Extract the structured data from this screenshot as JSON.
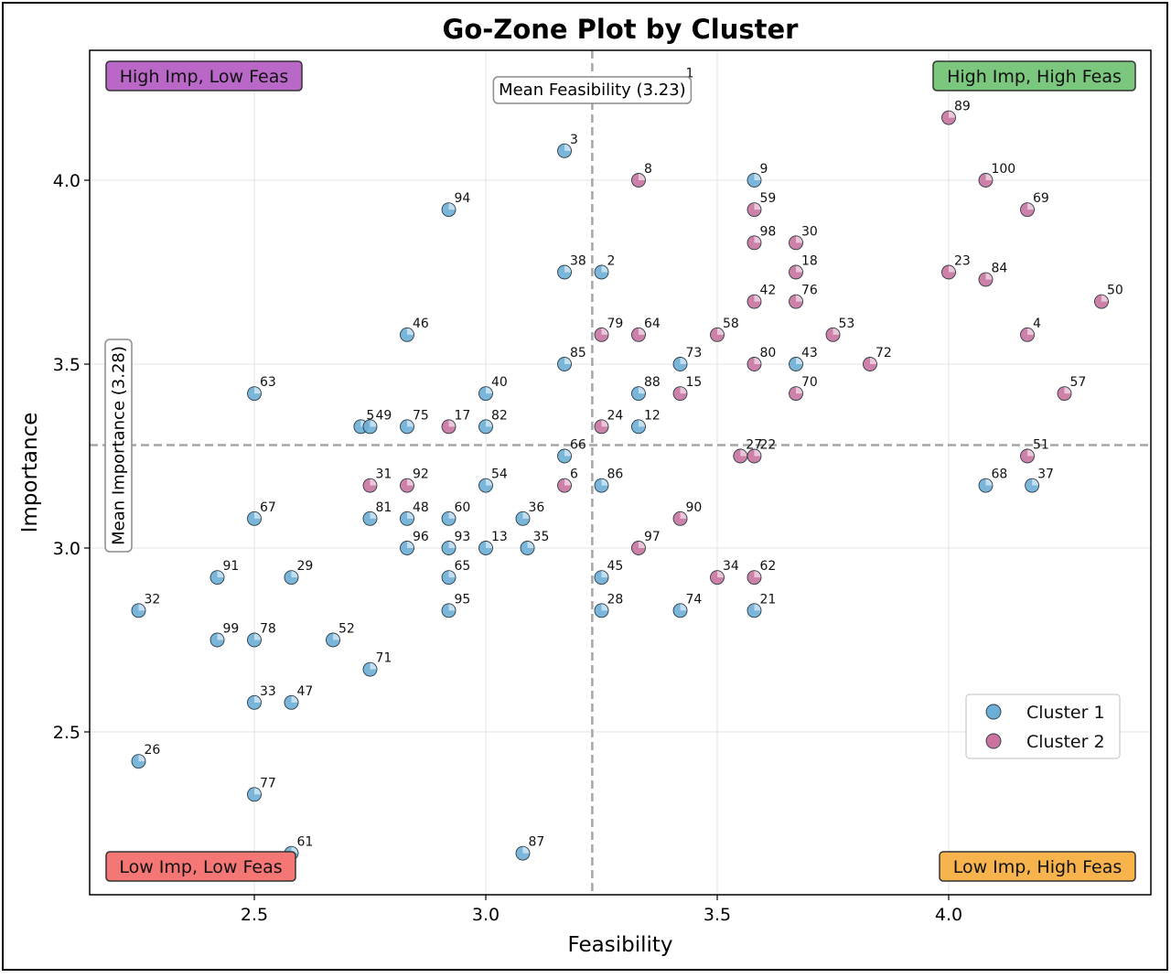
{
  "chart_data": {
    "type": "scatter",
    "title": "Go-Zone Plot by Cluster",
    "xlabel": "Feasibility",
    "ylabel": "Importance",
    "xlim": [
      2.14,
      4.44
    ],
    "ylim": [
      2.08,
      4.32
    ],
    "xticks": [
      2.5,
      3.0,
      3.5,
      4.0
    ],
    "yticks": [
      2.5,
      3.0,
      3.5,
      4.0
    ],
    "grid": true,
    "legend_position": "lower-right",
    "mean_feasibility": 3.23,
    "mean_importance": 3.28,
    "mean_feasibility_label": "Mean Feasibility (3.23)",
    "mean_importance_label": "Mean Importance (3.28)",
    "quadrants": [
      {
        "label": "High Imp, Low Feas",
        "position": "top-left",
        "color": "#b968c7"
      },
      {
        "label": "High Imp, High Feas",
        "position": "top-right",
        "color": "#7bc77e"
      },
      {
        "label": "Low Imp, Low Feas",
        "position": "bottom-left",
        "color": "#f47775"
      },
      {
        "label": "Low Imp, High Feas",
        "position": "bottom-right",
        "color": "#f8b44c"
      }
    ],
    "series": [
      {
        "name": "Cluster 1",
        "color": "#6baed6",
        "points": [
          {
            "id": "3",
            "x": 3.17,
            "y": 4.08
          },
          {
            "id": "9",
            "x": 3.58,
            "y": 4.0
          },
          {
            "id": "94",
            "x": 2.92,
            "y": 3.92
          },
          {
            "id": "38",
            "x": 3.17,
            "y": 3.75
          },
          {
            "id": "2",
            "x": 3.25,
            "y": 3.75
          },
          {
            "id": "46",
            "x": 2.83,
            "y": 3.58
          },
          {
            "id": "85",
            "x": 3.17,
            "y": 3.5
          },
          {
            "id": "73",
            "x": 3.42,
            "y": 3.5
          },
          {
            "id": "43",
            "x": 3.67,
            "y": 3.5
          },
          {
            "id": "63",
            "x": 2.5,
            "y": 3.42
          },
          {
            "id": "40",
            "x": 3.0,
            "y": 3.42
          },
          {
            "id": "88",
            "x": 3.33,
            "y": 3.42
          },
          {
            "id": "5",
            "x": 2.73,
            "y": 3.33
          },
          {
            "id": "49",
            "x": 2.75,
            "y": 3.33
          },
          {
            "id": "75",
            "x": 2.83,
            "y": 3.33
          },
          {
            "id": "82",
            "x": 3.0,
            "y": 3.33
          },
          {
            "id": "12",
            "x": 3.33,
            "y": 3.33
          },
          {
            "id": "66",
            "x": 3.17,
            "y": 3.25
          },
          {
            "id": "86",
            "x": 3.25,
            "y": 3.17
          },
          {
            "id": "54",
            "x": 3.0,
            "y": 3.17
          },
          {
            "id": "68",
            "x": 4.08,
            "y": 3.17
          },
          {
            "id": "37",
            "x": 4.18,
            "y": 3.17
          },
          {
            "id": "67",
            "x": 2.5,
            "y": 3.08
          },
          {
            "id": "81",
            "x": 2.75,
            "y": 3.08
          },
          {
            "id": "48",
            "x": 2.83,
            "y": 3.08
          },
          {
            "id": "60",
            "x": 2.92,
            "y": 3.08
          },
          {
            "id": "36",
            "x": 3.08,
            "y": 3.08
          },
          {
            "id": "96",
            "x": 2.83,
            "y": 3.0
          },
          {
            "id": "93",
            "x": 2.92,
            "y": 3.0
          },
          {
            "id": "13",
            "x": 3.0,
            "y": 3.0
          },
          {
            "id": "35",
            "x": 3.09,
            "y": 3.0
          },
          {
            "id": "91",
            "x": 2.42,
            "y": 2.92
          },
          {
            "id": "29",
            "x": 2.58,
            "y": 2.92
          },
          {
            "id": "65",
            "x": 2.92,
            "y": 2.92
          },
          {
            "id": "45",
            "x": 3.25,
            "y": 2.92
          },
          {
            "id": "32",
            "x": 2.25,
            "y": 2.83
          },
          {
            "id": "95",
            "x": 2.92,
            "y": 2.83
          },
          {
            "id": "28",
            "x": 3.25,
            "y": 2.83
          },
          {
            "id": "74",
            "x": 3.42,
            "y": 2.83
          },
          {
            "id": "21",
            "x": 3.58,
            "y": 2.83
          },
          {
            "id": "99",
            "x": 2.42,
            "y": 2.75
          },
          {
            "id": "78",
            "x": 2.5,
            "y": 2.75
          },
          {
            "id": "52",
            "x": 2.67,
            "y": 2.75
          },
          {
            "id": "71",
            "x": 2.75,
            "y": 2.67
          },
          {
            "id": "33",
            "x": 2.5,
            "y": 2.58
          },
          {
            "id": "47",
            "x": 2.58,
            "y": 2.58
          },
          {
            "id": "26",
            "x": 2.25,
            "y": 2.42
          },
          {
            "id": "77",
            "x": 2.5,
            "y": 2.33
          },
          {
            "id": "61",
            "x": 2.58,
            "y": 2.17
          },
          {
            "id": "87",
            "x": 3.08,
            "y": 2.17
          }
        ]
      },
      {
        "name": "Cluster 2",
        "color": "#c9739e",
        "points": [
          {
            "id": "89",
            "x": 4.0,
            "y": 4.17
          },
          {
            "id": "8",
            "x": 3.33,
            "y": 4.0
          },
          {
            "id": "100",
            "x": 4.08,
            "y": 4.0
          },
          {
            "id": "59",
            "x": 3.58,
            "y": 3.92
          },
          {
            "id": "69",
            "x": 4.17,
            "y": 3.92
          },
          {
            "id": "98",
            "x": 3.58,
            "y": 3.83
          },
          {
            "id": "30",
            "x": 3.67,
            "y": 3.83
          },
          {
            "id": "18",
            "x": 3.67,
            "y": 3.75
          },
          {
            "id": "23",
            "x": 4.0,
            "y": 3.75
          },
          {
            "id": "84",
            "x": 4.08,
            "y": 3.73
          },
          {
            "id": "42",
            "x": 3.58,
            "y": 3.67
          },
          {
            "id": "76",
            "x": 3.67,
            "y": 3.67
          },
          {
            "id": "50",
            "x": 4.33,
            "y": 3.67
          },
          {
            "id": "79",
            "x": 3.25,
            "y": 3.58
          },
          {
            "id": "64",
            "x": 3.33,
            "y": 3.58
          },
          {
            "id": "58",
            "x": 3.5,
            "y": 3.58
          },
          {
            "id": "53",
            "x": 3.75,
            "y": 3.58
          },
          {
            "id": "4",
            "x": 4.17,
            "y": 3.58
          },
          {
            "id": "80",
            "x": 3.58,
            "y": 3.5
          },
          {
            "id": "72",
            "x": 3.83,
            "y": 3.5
          },
          {
            "id": "15",
            "x": 3.42,
            "y": 3.42
          },
          {
            "id": "70",
            "x": 3.67,
            "y": 3.42
          },
          {
            "id": "57",
            "x": 4.25,
            "y": 3.42
          },
          {
            "id": "17",
            "x": 2.92,
            "y": 3.33
          },
          {
            "id": "24",
            "x": 3.25,
            "y": 3.33
          },
          {
            "id": "27",
            "x": 3.55,
            "y": 3.25
          },
          {
            "id": "22",
            "x": 3.58,
            "y": 3.25
          },
          {
            "id": "51",
            "x": 4.17,
            "y": 3.25
          },
          {
            "id": "31",
            "x": 2.75,
            "y": 3.17
          },
          {
            "id": "92",
            "x": 2.83,
            "y": 3.17
          },
          {
            "id": "6",
            "x": 3.17,
            "y": 3.17
          },
          {
            "id": "90",
            "x": 3.42,
            "y": 3.08
          },
          {
            "id": "97",
            "x": 3.33,
            "y": 3.0
          },
          {
            "id": "34",
            "x": 3.5,
            "y": 2.92
          },
          {
            "id": "62",
            "x": 3.58,
            "y": 2.92
          }
        ]
      }
    ],
    "extra_labels": [
      {
        "id": "1",
        "x": 3.42,
        "y": 4.26
      }
    ]
  }
}
